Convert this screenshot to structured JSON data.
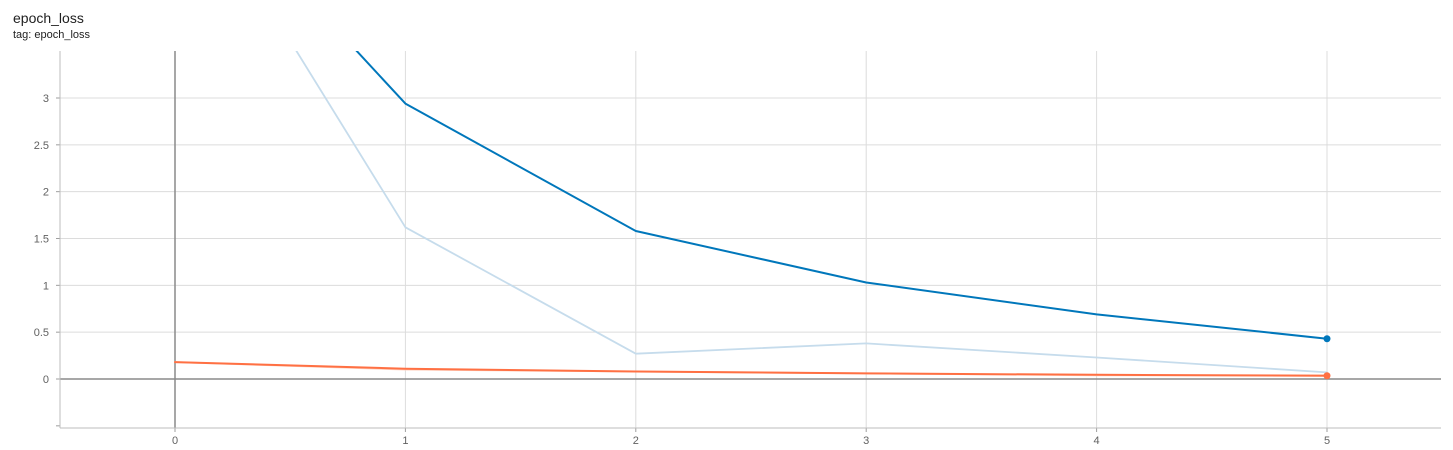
{
  "header": {
    "title": "epoch_loss",
    "tag": "tag: epoch_loss"
  },
  "chart_data": {
    "type": "line",
    "title": "epoch_loss",
    "xlabel": "",
    "ylabel": "",
    "xlim": [
      -0.5,
      5.5
    ],
    "ylim": [
      -0.5,
      3.5
    ],
    "x_ticks": [
      0,
      1,
      2,
      3,
      4,
      5
    ],
    "y_ticks": [
      {
        "value": 0,
        "label": "0"
      },
      {
        "value": 0.5,
        "label": "0.5"
      },
      {
        "value": 1,
        "label": "1"
      },
      {
        "value": 1.5,
        "label": "1.5"
      },
      {
        "value": 2,
        "label": "2"
      },
      {
        "value": 2.5,
        "label": "2.5"
      },
      {
        "value": 3,
        "label": "3"
      }
    ],
    "grid": true,
    "series": [
      {
        "role": "raw",
        "color": "#c6dcec",
        "x": [
          0,
          1,
          2,
          3,
          4,
          5
        ],
        "values": [
          5.6,
          1.62,
          0.27,
          0.38,
          0.23,
          0.07
        ],
        "end_marker": false
      },
      {
        "role": "smoothed",
        "color": "#0077bb",
        "x": [
          0,
          1,
          2,
          3,
          4,
          5
        ],
        "values": [
          5.6,
          2.94,
          1.58,
          1.03,
          0.69,
          0.43
        ],
        "end_marker": true
      },
      {
        "role": "raw",
        "color": "#ffd3c2",
        "x": [
          0,
          1,
          2,
          3,
          4,
          5
        ],
        "values": [
          0.18,
          0.1,
          0.08,
          0.06,
          0.04,
          0.04
        ],
        "end_marker": false
      },
      {
        "role": "smoothed",
        "color": "#ff7043",
        "x": [
          0,
          1,
          2,
          3,
          4,
          5
        ],
        "values": [
          0.18,
          0.11,
          0.08,
          0.06,
          0.045,
          0.035
        ],
        "end_marker": true
      }
    ]
  }
}
